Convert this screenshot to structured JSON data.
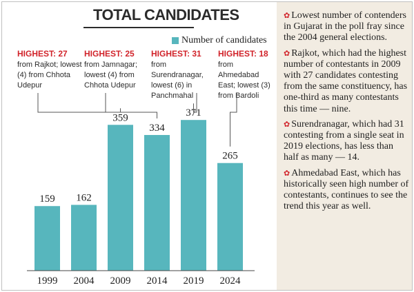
{
  "chart_data": {
    "type": "bar",
    "title": "TOTAL CANDIDATES",
    "categories": [
      "1999",
      "2004",
      "2009",
      "2014",
      "2019",
      "2024"
    ],
    "series": [
      {
        "name": "Number of candidates",
        "values": [
          159,
          162,
          359,
          334,
          371,
          265
        ]
      }
    ],
    "data_labels": [
      "159",
      "162",
      "359",
      "334",
      "371",
      "265"
    ],
    "ylim": [
      0,
      390
    ],
    "grid": false,
    "legend_position": "top-right",
    "bar_color": "#57b6bd"
  },
  "annotations": [
    {
      "highlight": "HIGHEST: 27",
      "text": "from Rajkot; lowest (4) from Chhota Udepur"
    },
    {
      "highlight": "HIGHEST: 25",
      "text": "from Jamnagar; lowest (4) from Chhota Udepur"
    },
    {
      "highlight": "HIGHEST: 31",
      "text": "from Surendranagar, lowest (6) in Panchmahal"
    },
    {
      "highlight": "HIGHEST: 18",
      "text": "from Ahmedabad East; lowest (3) from Bardoli"
    }
  ],
  "notes": [
    "Lowest number of contenders in Gujarat in the poll fray since the 2004 general elections.",
    "Rajkot, which had the highest number of contestants in 2009 with 27 candidates contesting from the same constituency, has one-third as many contestants this time — nine.",
    "Surendranagar, which had 31 contesting from a single seat in 2019 elections, has less than half as many — 14.",
    "Ahmedabad East, which has historically seen high number of contestants, continues to see the trend this year as well."
  ],
  "colors": {
    "bar": "#57b6bd",
    "highlight": "#d1232a",
    "panel_bg": "#f2ece2"
  },
  "icons": {
    "note_bullet": "flower-bullet-icon"
  }
}
